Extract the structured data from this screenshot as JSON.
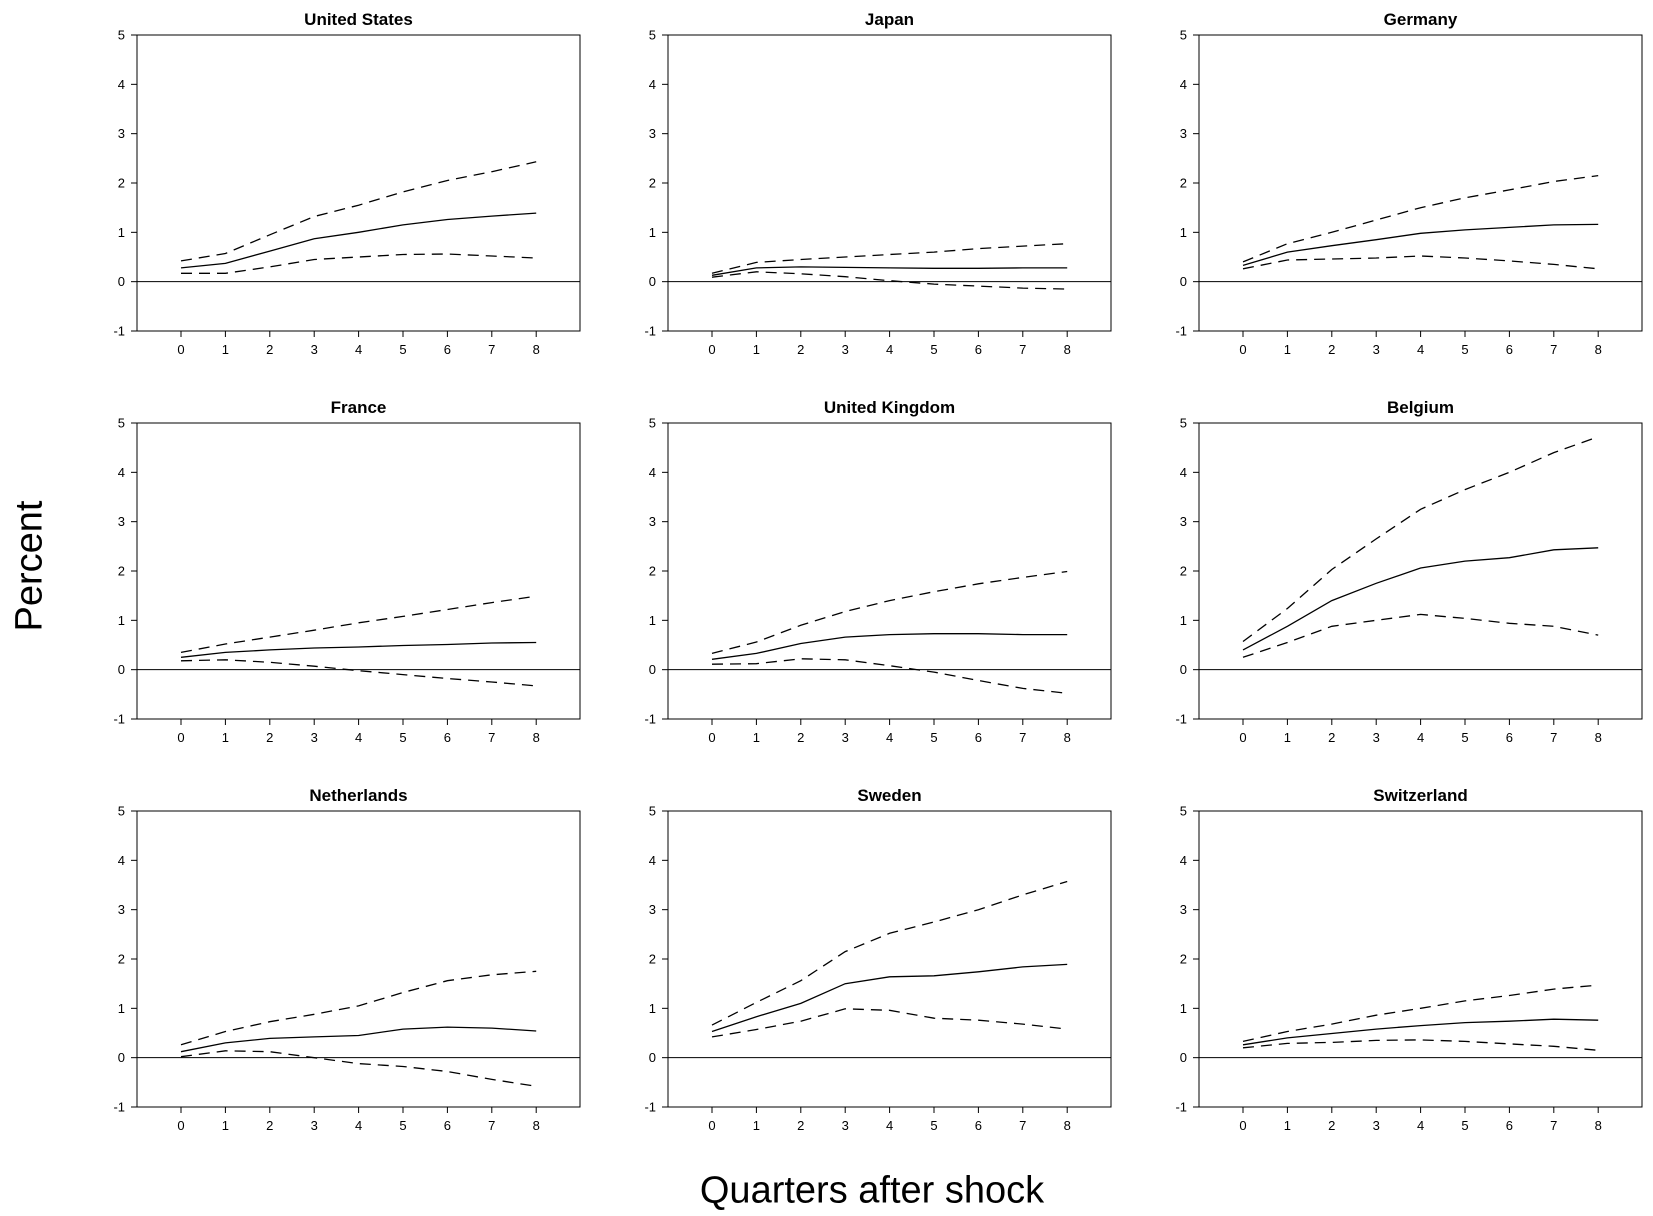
{
  "figure": {
    "ylabel": "Percent",
    "xlabel": "Quarters after shock"
  },
  "chart_data": [
    {
      "type": "line",
      "title": "United States",
      "x": [
        0,
        1,
        2,
        3,
        4,
        5,
        6,
        7,
        8
      ],
      "ylim": [
        -1,
        5
      ],
      "xticks": [
        "0",
        "1",
        "2",
        "3",
        "4",
        "5",
        "6",
        "7",
        "8"
      ],
      "yticks": [
        "-1",
        "0",
        "1",
        "2",
        "3",
        "4",
        "5"
      ],
      "series": [
        {
          "values": [
            0.28,
            0.37,
            0.62,
            0.87,
            1.0,
            1.15,
            1.26,
            1.33,
            1.39
          ],
          "style": "solid"
        },
        {
          "values": [
            0.42,
            0.57,
            0.95,
            1.32,
            1.55,
            1.82,
            2.05,
            2.23,
            2.43
          ],
          "style": "dashed"
        },
        {
          "values": [
            0.17,
            0.17,
            0.3,
            0.45,
            0.5,
            0.55,
            0.56,
            0.52,
            0.48
          ],
          "style": "dashed"
        }
      ]
    },
    {
      "type": "line",
      "title": "Japan",
      "x": [
        0,
        1,
        2,
        3,
        4,
        5,
        6,
        7,
        8
      ],
      "ylim": [
        -1,
        5
      ],
      "xticks": [
        "0",
        "1",
        "2",
        "3",
        "4",
        "5",
        "6",
        "7",
        "8"
      ],
      "yticks": [
        "-1",
        "0",
        "1",
        "2",
        "3",
        "4",
        "5"
      ],
      "series": [
        {
          "values": [
            0.13,
            0.28,
            0.3,
            0.29,
            0.28,
            0.27,
            0.27,
            0.28,
            0.28
          ],
          "style": "solid"
        },
        {
          "values": [
            0.17,
            0.39,
            0.45,
            0.5,
            0.55,
            0.6,
            0.67,
            0.72,
            0.77
          ],
          "style": "dashed"
        },
        {
          "values": [
            0.09,
            0.2,
            0.16,
            0.1,
            0.02,
            -0.05,
            -0.09,
            -0.13,
            -0.15
          ],
          "style": "dashed"
        }
      ]
    },
    {
      "type": "line",
      "title": "Germany",
      "x": [
        0,
        1,
        2,
        3,
        4,
        5,
        6,
        7,
        8
      ],
      "ylim": [
        -1,
        5
      ],
      "xticks": [
        "0",
        "1",
        "2",
        "3",
        "4",
        "5",
        "6",
        "7",
        "8"
      ],
      "yticks": [
        "-1",
        "0",
        "1",
        "2",
        "3",
        "4",
        "5"
      ],
      "series": [
        {
          "values": [
            0.33,
            0.6,
            0.73,
            0.85,
            0.98,
            1.05,
            1.1,
            1.15,
            1.16
          ],
          "style": "solid"
        },
        {
          "values": [
            0.4,
            0.77,
            1.0,
            1.25,
            1.5,
            1.7,
            1.86,
            2.03,
            2.15
          ],
          "style": "dashed"
        },
        {
          "values": [
            0.26,
            0.44,
            0.46,
            0.48,
            0.52,
            0.48,
            0.42,
            0.35,
            0.26
          ],
          "style": "dashed"
        }
      ]
    },
    {
      "type": "line",
      "title": "France",
      "x": [
        0,
        1,
        2,
        3,
        4,
        5,
        6,
        7,
        8
      ],
      "ylim": [
        -1,
        5
      ],
      "xticks": [
        "0",
        "1",
        "2",
        "3",
        "4",
        "5",
        "6",
        "7",
        "8"
      ],
      "yticks": [
        "-1",
        "0",
        "1",
        "2",
        "3",
        "4",
        "5"
      ],
      "series": [
        {
          "values": [
            0.25,
            0.35,
            0.4,
            0.44,
            0.46,
            0.49,
            0.51,
            0.54,
            0.55
          ],
          "style": "solid"
        },
        {
          "values": [
            0.35,
            0.52,
            0.66,
            0.8,
            0.95,
            1.08,
            1.22,
            1.36,
            1.49
          ],
          "style": "dashed"
        },
        {
          "values": [
            0.18,
            0.2,
            0.15,
            0.07,
            -0.02,
            -0.1,
            -0.18,
            -0.25,
            -0.33
          ],
          "style": "dashed"
        }
      ]
    },
    {
      "type": "line",
      "title": "United Kingdom",
      "x": [
        0,
        1,
        2,
        3,
        4,
        5,
        6,
        7,
        8
      ],
      "ylim": [
        -1,
        5
      ],
      "xticks": [
        "0",
        "1",
        "2",
        "3",
        "4",
        "5",
        "6",
        "7",
        "8"
      ],
      "yticks": [
        "-1",
        "0",
        "1",
        "2",
        "3",
        "4",
        "5"
      ],
      "series": [
        {
          "values": [
            0.21,
            0.33,
            0.53,
            0.66,
            0.71,
            0.73,
            0.73,
            0.71,
            0.71
          ],
          "style": "solid"
        },
        {
          "values": [
            0.33,
            0.56,
            0.9,
            1.18,
            1.4,
            1.58,
            1.74,
            1.87,
            1.99
          ],
          "style": "dashed"
        },
        {
          "values": [
            0.11,
            0.12,
            0.22,
            0.2,
            0.08,
            -0.05,
            -0.22,
            -0.38,
            -0.48
          ],
          "style": "dashed"
        }
      ]
    },
    {
      "type": "line",
      "title": "Belgium",
      "x": [
        0,
        1,
        2,
        3,
        4,
        5,
        6,
        7,
        8
      ],
      "ylim": [
        -1,
        5
      ],
      "xticks": [
        "0",
        "1",
        "2",
        "3",
        "4",
        "5",
        "6",
        "7",
        "8"
      ],
      "yticks": [
        "-1",
        "0",
        "1",
        "2",
        "3",
        "4",
        "5"
      ],
      "series": [
        {
          "values": [
            0.4,
            0.88,
            1.4,
            1.75,
            2.06,
            2.2,
            2.27,
            2.43,
            2.47
          ],
          "style": "solid"
        },
        {
          "values": [
            0.57,
            1.24,
            2.03,
            2.65,
            3.25,
            3.65,
            4.0,
            4.4,
            4.72
          ],
          "style": "dashed"
        },
        {
          "values": [
            0.25,
            0.55,
            0.88,
            1.0,
            1.12,
            1.04,
            0.94,
            0.88,
            0.7
          ],
          "style": "dashed"
        }
      ]
    },
    {
      "type": "line",
      "title": "Netherlands",
      "x": [
        0,
        1,
        2,
        3,
        4,
        5,
        6,
        7,
        8
      ],
      "ylim": [
        -1,
        5
      ],
      "xticks": [
        "0",
        "1",
        "2",
        "3",
        "4",
        "5",
        "6",
        "7",
        "8"
      ],
      "yticks": [
        "-1",
        "0",
        "1",
        "2",
        "3",
        "4",
        "5"
      ],
      "series": [
        {
          "values": [
            0.12,
            0.3,
            0.39,
            0.42,
            0.45,
            0.58,
            0.62,
            0.6,
            0.54
          ],
          "style": "solid"
        },
        {
          "values": [
            0.26,
            0.53,
            0.73,
            0.88,
            1.05,
            1.32,
            1.56,
            1.68,
            1.75
          ],
          "style": "dashed"
        },
        {
          "values": [
            0.02,
            0.14,
            0.12,
            0.0,
            -0.12,
            -0.18,
            -0.28,
            -0.44,
            -0.58
          ],
          "style": "dashed"
        }
      ]
    },
    {
      "type": "line",
      "title": "Sweden",
      "x": [
        0,
        1,
        2,
        3,
        4,
        5,
        6,
        7,
        8
      ],
      "ylim": [
        -1,
        5
      ],
      "xticks": [
        "0",
        "1",
        "2",
        "3",
        "4",
        "5",
        "6",
        "7",
        "8"
      ],
      "yticks": [
        "-1",
        "0",
        "1",
        "2",
        "3",
        "4",
        "5"
      ],
      "series": [
        {
          "values": [
            0.53,
            0.83,
            1.1,
            1.5,
            1.64,
            1.66,
            1.74,
            1.84,
            1.89
          ],
          "style": "solid"
        },
        {
          "values": [
            0.66,
            1.12,
            1.56,
            2.15,
            2.52,
            2.75,
            3.0,
            3.3,
            3.57
          ],
          "style": "dashed"
        },
        {
          "values": [
            0.42,
            0.57,
            0.74,
            0.99,
            0.96,
            0.8,
            0.76,
            0.68,
            0.58
          ],
          "style": "dashed"
        }
      ]
    },
    {
      "type": "line",
      "title": "Switzerland",
      "x": [
        0,
        1,
        2,
        3,
        4,
        5,
        6,
        7,
        8
      ],
      "ylim": [
        -1,
        5
      ],
      "xticks": [
        "0",
        "1",
        "2",
        "3",
        "4",
        "5",
        "6",
        "7",
        "8"
      ],
      "yticks": [
        "-1",
        "0",
        "1",
        "2",
        "3",
        "4",
        "5"
      ],
      "series": [
        {
          "values": [
            0.26,
            0.4,
            0.49,
            0.58,
            0.65,
            0.71,
            0.74,
            0.78,
            0.76
          ],
          "style": "solid"
        },
        {
          "values": [
            0.33,
            0.53,
            0.68,
            0.86,
            1.0,
            1.15,
            1.26,
            1.39,
            1.47
          ],
          "style": "dashed"
        },
        {
          "values": [
            0.2,
            0.29,
            0.31,
            0.35,
            0.36,
            0.33,
            0.28,
            0.23,
            0.15
          ],
          "style": "dashed"
        }
      ]
    }
  ]
}
